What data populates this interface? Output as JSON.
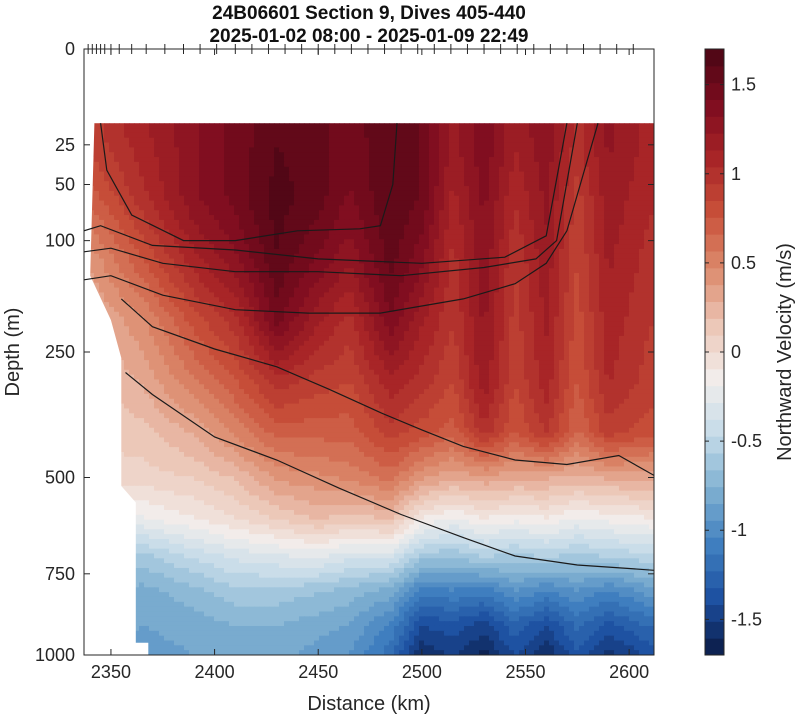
{
  "chart_data": {
    "type": "heatmap",
    "title": "24B06601 Section 9, Dives 405-440",
    "subtitle": "2025-01-02 08:00 - 2025-01-09 22:49",
    "xlabel": "Distance (km)",
    "ylabel": "Depth (m)",
    "colorbar_label": "Northward Velocity (m/s)",
    "xlim": [
      2337,
      2612
    ],
    "ylim_depth_sqrt_scale": [
      0,
      1000
    ],
    "y_scale": "square-root",
    "x_ticks": [
      2350,
      2400,
      2450,
      2500,
      2550,
      2600
    ],
    "x_tick_labels": [
      "2350",
      "2400",
      "2450",
      "2500",
      "2550",
      "2600"
    ],
    "y_ticks": [
      0,
      25,
      50,
      100,
      250,
      500,
      750,
      1000
    ],
    "y_tick_labels": [
      "0",
      "25",
      "50",
      "100",
      "250",
      "500",
      "750",
      "1000"
    ],
    "colorbar_ticks": [
      1.5,
      1,
      0.5,
      0,
      -0.5,
      -1,
      -1.5
    ],
    "colorbar_tick_labels": [
      "1.5",
      "1",
      "0.5",
      "0",
      "-0.5",
      "-1",
      "-1.5"
    ],
    "colorbar_range": [
      -1.7,
      1.7
    ],
    "colormap": [
      "#0a1a44",
      "#1c4fa0",
      "#3f7fbf",
      "#7fb0d1",
      "#c4dbe8",
      "#f2eeec",
      "#ecc6b6",
      "#dc8b6d",
      "#c9513a",
      "#a92527",
      "#7e0c1f",
      "#4a0614"
    ],
    "dive_markers_x": [
      2339,
      2341,
      2343,
      2345,
      2347,
      2350,
      2354,
      2360,
      2367,
      2376,
      2385,
      2393,
      2401,
      2410,
      2418,
      2426,
      2434,
      2442,
      2450,
      2458,
      2466,
      2474,
      2482,
      2490,
      2498,
      2506,
      2514,
      2522,
      2530,
      2538,
      2546,
      2554,
      2562,
      2570,
      2578,
      2586,
      2594,
      2602
    ],
    "data_top_depth_m": 15,
    "left_data_edge": [
      [
        2342,
        15
      ],
      [
        2340,
        140
      ],
      [
        2350,
        200
      ],
      [
        2355,
        260
      ],
      [
        2355,
        520
      ],
      [
        2362,
        560
      ],
      [
        2362,
        960
      ],
      [
        2368,
        960
      ],
      [
        2368,
        1000
      ]
    ],
    "velocity_field": {
      "x": [
        2340,
        2365,
        2390,
        2410,
        2430,
        2450,
        2465,
        2485,
        2500,
        2515,
        2530,
        2545,
        2560,
        2575,
        2590,
        2610
      ],
      "depth": [
        20,
        60,
        120,
        200,
        300,
        400,
        500,
        600,
        700,
        800,
        900,
        1000
      ],
      "values": [
        [
          0.9,
          1.1,
          1.3,
          1.45,
          1.6,
          1.55,
          1.45,
          1.6,
          1.5,
          1.2,
          1.4,
          1.15,
          1.3,
          1.0,
          1.25,
          1.1
        ],
        [
          0.7,
          1.0,
          1.3,
          1.45,
          1.65,
          1.55,
          1.4,
          1.6,
          1.5,
          1.1,
          1.35,
          1.05,
          1.25,
          0.9,
          1.2,
          1.05
        ],
        [
          0.4,
          0.75,
          1.1,
          1.3,
          1.6,
          1.4,
          1.25,
          1.55,
          1.35,
          1.0,
          1.3,
          0.95,
          1.2,
          0.85,
          1.15,
          1.0
        ],
        [
          0.25,
          0.45,
          0.8,
          1.0,
          1.45,
          1.15,
          1.0,
          1.4,
          1.15,
          0.95,
          1.25,
          0.9,
          1.15,
          0.8,
          1.1,
          0.95
        ],
        [
          0.15,
          0.3,
          0.55,
          0.75,
          1.0,
          0.9,
          0.85,
          1.1,
          1.0,
          0.85,
          1.2,
          0.85,
          1.1,
          0.75,
          1.05,
          0.9
        ],
        [
          0.1,
          0.15,
          0.3,
          0.5,
          0.7,
          0.7,
          0.7,
          0.9,
          0.8,
          0.7,
          1.0,
          0.75,
          0.95,
          0.65,
          0.9,
          0.8
        ],
        [
          0.05,
          0.05,
          0.1,
          0.2,
          0.4,
          0.45,
          0.5,
          0.6,
          0.4,
          0.3,
          0.35,
          0.3,
          0.3,
          0.25,
          0.3,
          0.3
        ],
        [
          -0.2,
          -0.2,
          -0.1,
          0.0,
          0.1,
          0.2,
          0.15,
          0.2,
          -0.1,
          -0.2,
          -0.1,
          -0.15,
          -0.1,
          -0.2,
          -0.15,
          -0.1
        ],
        [
          -0.55,
          -0.6,
          -0.45,
          -0.35,
          -0.3,
          -0.25,
          -0.35,
          -0.35,
          -0.6,
          -0.65,
          -0.55,
          -0.6,
          -0.55,
          -0.6,
          -0.55,
          -0.5
        ],
        [
          -0.7,
          -0.8,
          -0.7,
          -0.6,
          -0.6,
          -0.65,
          -0.7,
          -0.8,
          -1.1,
          -1.05,
          -1.1,
          -0.95,
          -1.05,
          -0.95,
          -1.05,
          -0.9
        ],
        [
          -0.75,
          -0.85,
          -0.8,
          -0.75,
          -0.75,
          -0.8,
          -0.85,
          -1.05,
          -1.4,
          -1.35,
          -1.45,
          -1.25,
          -1.4,
          -1.2,
          -1.35,
          -1.2
        ],
        [
          -0.8,
          -0.9,
          -0.85,
          -0.8,
          -0.8,
          -0.9,
          -0.95,
          -1.2,
          -1.6,
          -1.5,
          -1.65,
          -1.4,
          -1.6,
          -1.35,
          -1.55,
          -1.4
        ]
      ]
    },
    "contour_lines": [
      [
        [
          2345,
          15
        ],
        [
          2348,
          40
        ],
        [
          2360,
          75
        ],
        [
          2385,
          100
        ],
        [
          2410,
          100
        ],
        [
          2440,
          90
        ],
        [
          2470,
          88
        ],
        [
          2480,
          85
        ],
        [
          2486,
          50
        ],
        [
          2488,
          15
        ]
      ],
      [
        [
          2337,
          90
        ],
        [
          2345,
          85
        ],
        [
          2370,
          105
        ],
        [
          2410,
          110
        ],
        [
          2450,
          120
        ],
        [
          2500,
          125
        ],
        [
          2540,
          118
        ],
        [
          2560,
          95
        ],
        [
          2570,
          15
        ]
      ],
      [
        [
          2337,
          112
        ],
        [
          2350,
          108
        ],
        [
          2375,
          125
        ],
        [
          2410,
          135
        ],
        [
          2450,
          135
        ],
        [
          2490,
          140
        ],
        [
          2530,
          130
        ],
        [
          2555,
          120
        ],
        [
          2565,
          100
        ],
        [
          2575,
          15
        ]
      ],
      [
        [
          2337,
          145
        ],
        [
          2350,
          140
        ],
        [
          2375,
          165
        ],
        [
          2410,
          185
        ],
        [
          2445,
          190
        ],
        [
          2480,
          190
        ],
        [
          2520,
          170
        ],
        [
          2545,
          150
        ],
        [
          2560,
          125
        ],
        [
          2570,
          90
        ],
        [
          2585,
          15
        ]
      ],
      [
        [
          2355,
          170
        ],
        [
          2370,
          210
        ],
        [
          2400,
          245
        ],
        [
          2430,
          275
        ],
        [
          2455,
          315
        ],
        [
          2480,
          360
        ],
        [
          2500,
          395
        ],
        [
          2520,
          430
        ],
        [
          2545,
          460
        ],
        [
          2570,
          470
        ],
        [
          2595,
          450
        ],
        [
          2612,
          495
        ]
      ],
      [
        [
          2357,
          285
        ],
        [
          2370,
          325
        ],
        [
          2400,
          410
        ],
        [
          2430,
          460
        ],
        [
          2460,
          525
        ],
        [
          2490,
          590
        ],
        [
          2520,
          650
        ],
        [
          2545,
          700
        ],
        [
          2575,
          725
        ],
        [
          2600,
          735
        ],
        [
          2612,
          740
        ]
      ]
    ]
  }
}
